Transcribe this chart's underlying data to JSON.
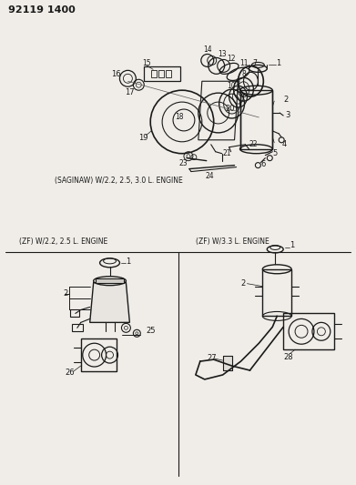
{
  "title": "92119 1400",
  "bg_color": "#f0ede8",
  "line_color": "#1a1a1a",
  "text_color": "#1a1a1a",
  "caption_top": "(SAGINAW) W/2.2, 2.5, 3.0 L. ENGINE",
  "caption_bottom_left": "(ZF) W/2.2, 2.5 L. ENGINE",
  "caption_bottom_right": "(ZF) W/3.3 L. ENGINE",
  "fig_width": 3.91,
  "fig_height": 5.33,
  "dpi": 100
}
